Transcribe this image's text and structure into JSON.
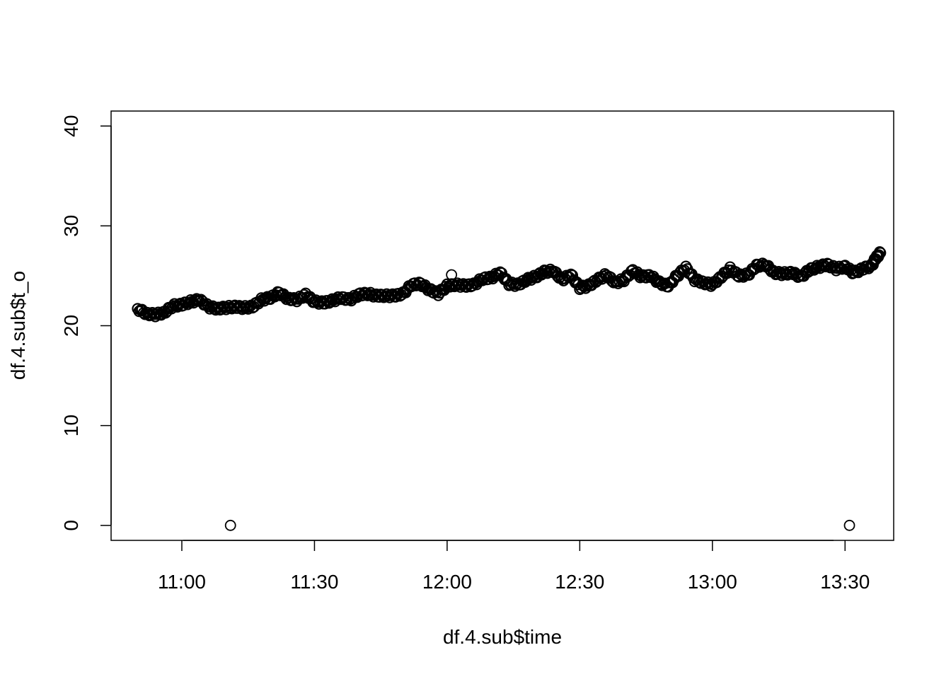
{
  "chart_data": {
    "type": "scatter",
    "title": "",
    "xlabel": "df.4.sub$time",
    "ylabel": "df.4.sub$t_o",
    "x_ticks": [
      "11:00",
      "11:30",
      "12:00",
      "12:30",
      "13:00",
      "13:30"
    ],
    "y_ticks": [
      "0",
      "10",
      "20",
      "30",
      "40"
    ],
    "xlim": [
      "10:44",
      "13:41"
    ],
    "ylim": [
      -1.5,
      41.5
    ],
    "marker": "open-circle",
    "grid": false,
    "legend": "none",
    "series": [
      {
        "points": [
          [
            "10:50",
            21.7
          ],
          [
            "10:52",
            21.2
          ],
          [
            "10:54",
            21.1
          ],
          [
            "10:56",
            21.3
          ],
          [
            "10:58",
            22.0
          ],
          [
            "11:00",
            22.1
          ],
          [
            "11:02",
            22.4
          ],
          [
            "11:04",
            22.6
          ],
          [
            "11:06",
            21.9
          ],
          [
            "11:08",
            21.7
          ],
          [
            "11:10",
            21.8
          ],
          [
            "11:12",
            21.9
          ],
          [
            "11:14",
            21.8
          ],
          [
            "11:16",
            21.9
          ],
          [
            "11:18",
            22.6
          ],
          [
            "11:20",
            22.8
          ],
          [
            "11:22",
            23.3
          ],
          [
            "11:24",
            22.7
          ],
          [
            "11:26",
            22.6
          ],
          [
            "11:28",
            23.1
          ],
          [
            "11:30",
            22.4
          ],
          [
            "11:32",
            22.3
          ],
          [
            "11:34",
            22.5
          ],
          [
            "11:36",
            22.8
          ],
          [
            "11:38",
            22.6
          ],
          [
            "11:40",
            23.1
          ],
          [
            "11:42",
            23.2
          ],
          [
            "11:44",
            23.0
          ],
          [
            "11:46",
            23.0
          ],
          [
            "11:48",
            23.0
          ],
          [
            "11:50",
            23.2
          ],
          [
            "11:52",
            24.1
          ],
          [
            "11:54",
            24.2
          ],
          [
            "11:56",
            23.6
          ],
          [
            "11:58",
            23.2
          ],
          [
            "12:00",
            24.0
          ],
          [
            "12:02",
            24.1
          ],
          [
            "12:04",
            24.0
          ],
          [
            "12:06",
            24.1
          ],
          [
            "12:08",
            24.7
          ],
          [
            "12:10",
            24.8
          ],
          [
            "12:12",
            25.3
          ],
          [
            "12:14",
            24.2
          ],
          [
            "12:16",
            24.1
          ],
          [
            "12:18",
            24.6
          ],
          [
            "12:20",
            24.9
          ],
          [
            "12:22",
            25.4
          ],
          [
            "12:24",
            25.5
          ],
          [
            "12:26",
            24.6
          ],
          [
            "12:28",
            25.1
          ],
          [
            "12:30",
            23.8
          ],
          [
            "12:32",
            24.0
          ],
          [
            "12:34",
            24.6
          ],
          [
            "12:36",
            25.1
          ],
          [
            "12:38",
            24.3
          ],
          [
            "12:40",
            24.6
          ],
          [
            "12:42",
            25.5
          ],
          [
            "12:44",
            24.9
          ],
          [
            "12:46",
            25.0
          ],
          [
            "12:48",
            24.3
          ],
          [
            "12:50",
            24.0
          ],
          [
            "12:52",
            25.0
          ],
          [
            "12:54",
            25.8
          ],
          [
            "12:56",
            24.6
          ],
          [
            "12:58",
            24.3
          ],
          [
            "13:00",
            24.1
          ],
          [
            "13:02",
            24.9
          ],
          [
            "13:04",
            25.7
          ],
          [
            "13:06",
            25.0
          ],
          [
            "13:08",
            25.1
          ],
          [
            "13:10",
            26.0
          ],
          [
            "13:12",
            26.1
          ],
          [
            "13:14",
            25.3
          ],
          [
            "13:16",
            25.2
          ],
          [
            "13:18",
            25.3
          ],
          [
            "13:20",
            24.9
          ],
          [
            "13:22",
            25.6
          ],
          [
            "13:24",
            25.9
          ],
          [
            "13:26",
            26.1
          ],
          [
            "13:28",
            25.7
          ],
          [
            "13:30",
            25.9
          ],
          [
            "13:32",
            25.3
          ],
          [
            "13:34",
            25.7
          ],
          [
            "13:36",
            26.0
          ],
          [
            "13:37",
            26.8
          ],
          [
            "13:38",
            27.3
          ]
        ],
        "outliers": [
          [
            "11:11",
            0.0
          ],
          [
            "12:01",
            25.1
          ],
          [
            "13:31",
            0.0
          ]
        ]
      }
    ],
    "colors": {
      "marker": "#000000",
      "axis": "#000000",
      "background": "#ffffff"
    }
  }
}
